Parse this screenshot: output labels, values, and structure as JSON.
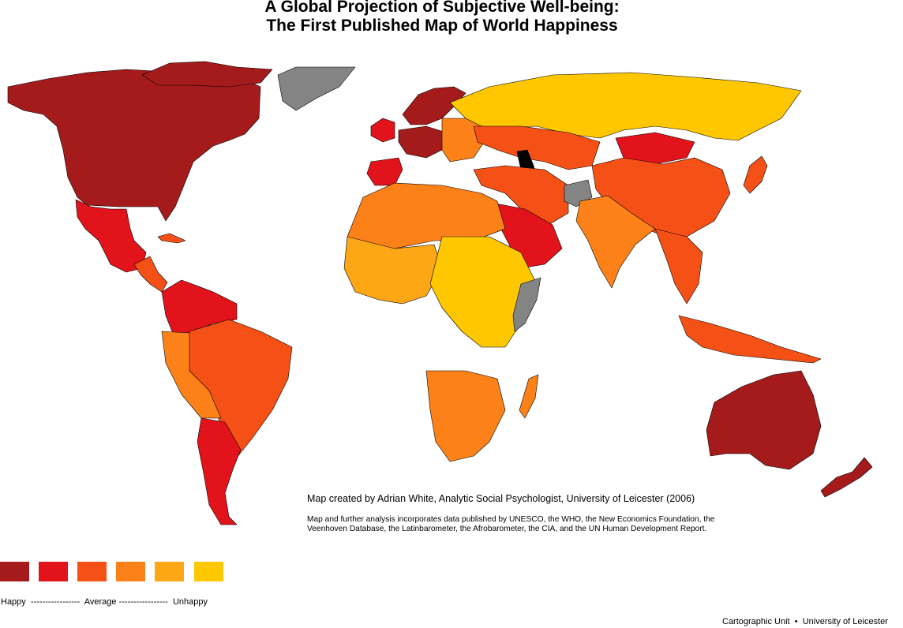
{
  "title": {
    "line1": "A Global Projection of Subjective Well-being:",
    "line2": "The First Published Map of World Happiness"
  },
  "legend": {
    "colors": [
      "#a51b1b",
      "#e3131c",
      "#f55116",
      "#fc8118",
      "#fda616",
      "#ffc700"
    ],
    "label_happy": "Happy",
    "dash1": "-----------------",
    "label_average": "Average",
    "dash2": "-----------------",
    "label_unhappy": "Unhappy"
  },
  "palette": {
    "c1": "#a51b1b",
    "c2": "#e3131c",
    "c3": "#f55116",
    "c4": "#fc8118",
    "c5": "#fda616",
    "c6": "#ffc700",
    "nodata": "#848484",
    "water": "#000000"
  },
  "credit": "Map created by Adrian White, Analytic Social Psychologist, University of Leicester (2006)",
  "sources": "Map and further analysis incorporates data published by UNESCO, the WHO, the New Economics Foundation, the Veenhoven Database, the Latinbarometer, the Afrobarometer, the CIA, and the UN Human Development Report.",
  "footer": {
    "left": "Cartographic Unit",
    "sep": "•",
    "right": "University of Leicester"
  }
}
